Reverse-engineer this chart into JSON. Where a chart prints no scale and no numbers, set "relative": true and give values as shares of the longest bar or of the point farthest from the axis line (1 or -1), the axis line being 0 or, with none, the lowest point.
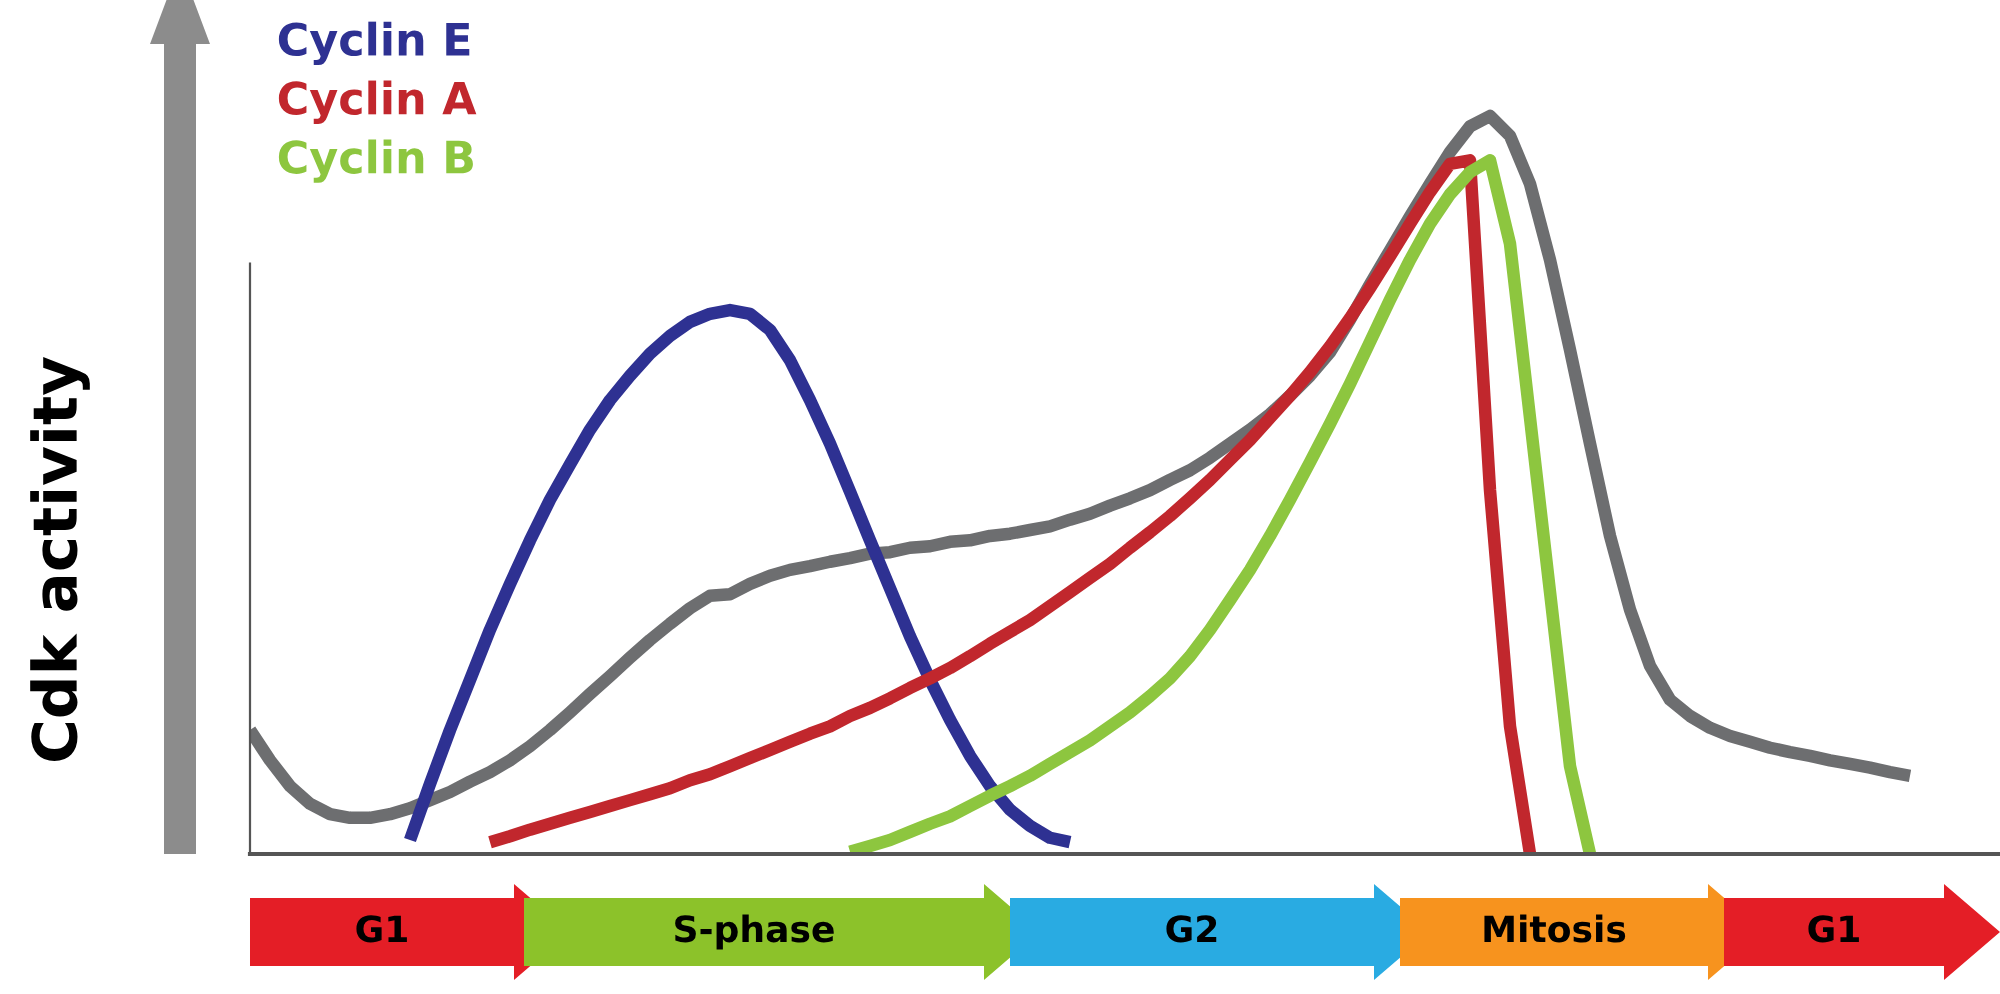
{
  "chart_data": {
    "type": "line",
    "relative": true,
    "ylabel": "Cdk activity",
    "legend": "top left",
    "marker": "none",
    "line_style": "solid",
    "grid": false,
    "categories": [
      null,
      null,
      null,
      null,
      null,
      null,
      null,
      null,
      null,
      null,
      null,
      null,
      null,
      null,
      null,
      null,
      null,
      null,
      null,
      null,
      null,
      null,
      null,
      null,
      null,
      null,
      null,
      null,
      null,
      null,
      null,
      null,
      null,
      null,
      null,
      null,
      null,
      null,
      null,
      null,
      null,
      null,
      null,
      null,
      null,
      null,
      null,
      null,
      null,
      null,
      null,
      null,
      null,
      null,
      null,
      null,
      null,
      null,
      null,
      null,
      null,
      null,
      null,
      null,
      null,
      null,
      null,
      null,
      null,
      null,
      null,
      null,
      null,
      null,
      null,
      null,
      null,
      null,
      null,
      null,
      null,
      null,
      null,
      null
    ],
    "series": [
      {
        "color": "#6d6e70",
        "values": [
          0.168,
          0.127,
          0.092,
          0.068,
          0.054,
          0.049,
          0.049,
          0.054,
          0.062,
          0.073,
          0.084,
          0.098,
          0.111,
          0.127,
          0.146,
          0.168,
          0.192,
          0.217,
          0.241,
          0.266,
          0.29,
          0.312,
          0.333,
          0.35,
          0.352,
          0.366,
          0.377,
          0.385,
          0.39,
          0.396,
          0.401,
          0.407,
          0.409,
          0.415,
          0.417,
          0.423,
          0.425,
          0.431,
          0.434,
          0.439,
          0.444,
          0.453,
          0.461,
          0.472,
          0.482,
          0.493,
          0.507,
          0.52,
          0.537,
          0.556,
          0.575,
          0.596,
          0.621,
          0.648,
          0.68,
          0.724,
          0.772,
          0.818,
          0.864,
          0.908,
          0.951,
          0.986,
          1,
          0.973,
          0.908,
          0.805,
          0.683,
          0.556,
          0.431,
          0.331,
          0.255,
          0.209,
          0.187,
          0.171,
          0.16,
          0.152,
          0.144,
          0.138,
          0.133,
          0.127,
          0.122,
          0.117,
          0.111,
          0.106
        ]
      },
      {
        "name": "Cyclin E",
        "color": "#2e3192",
        "values": [
          null,
          null,
          null,
          null,
          null,
          null,
          null,
          null,
          0.019,
          0.095,
          0.168,
          0.236,
          0.304,
          0.366,
          0.425,
          0.48,
          0.528,
          0.575,
          0.615,
          0.648,
          0.678,
          0.702,
          0.721,
          0.732,
          0.737,
          0.732,
          0.71,
          0.669,
          0.615,
          0.556,
          0.491,
          0.425,
          0.36,
          0.295,
          0.236,
          0.182,
          0.133,
          0.092,
          0.06,
          0.038,
          0.022,
          0.016,
          null,
          null,
          null,
          null,
          null,
          null,
          null,
          null,
          null,
          null,
          null,
          null,
          null,
          null,
          null,
          null,
          null,
          null,
          null,
          null,
          null,
          null,
          null,
          null,
          null,
          null,
          null,
          null,
          null,
          null,
          null,
          null,
          null,
          null,
          null,
          null,
          null,
          null,
          null,
          null,
          null,
          null
        ]
      },
      {
        "name": "Cyclin A",
        "color": "#c1272d",
        "values": [
          null,
          null,
          null,
          null,
          null,
          null,
          null,
          null,
          null,
          null,
          null,
          null,
          0.016,
          0.024,
          0.033,
          0.041,
          0.049,
          0.057,
          0.065,
          0.073,
          0.081,
          0.089,
          0.1,
          0.108,
          0.119,
          0.13,
          0.141,
          0.152,
          0.163,
          0.173,
          0.187,
          0.198,
          0.211,
          0.225,
          0.238,
          0.252,
          0.268,
          0.285,
          0.301,
          0.317,
          0.336,
          0.355,
          0.374,
          0.393,
          0.415,
          0.436,
          0.458,
          0.482,
          0.507,
          0.534,
          0.561,
          0.591,
          0.621,
          0.653,
          0.688,
          0.726,
          0.767,
          0.81,
          0.854,
          0.897,
          0.935,
          0.94,
          0.493,
          0.173,
          0,
          null,
          null,
          null,
          null,
          null,
          null,
          null,
          null,
          null,
          null,
          null,
          null,
          null,
          null,
          null,
          null,
          null,
          null,
          null
        ]
      },
      {
        "name": "Cyclin B",
        "color": "#8dc63f",
        "values": [
          null,
          null,
          null,
          null,
          null,
          null,
          null,
          null,
          null,
          null,
          null,
          null,
          null,
          null,
          null,
          null,
          null,
          null,
          null,
          null,
          null,
          null,
          null,
          null,
          null,
          null,
          null,
          null,
          null,
          null,
          0.003,
          0.011,
          0.019,
          0.03,
          0.041,
          0.051,
          0.065,
          0.079,
          0.092,
          0.106,
          0.122,
          0.138,
          0.154,
          0.173,
          0.192,
          0.214,
          0.238,
          0.268,
          0.304,
          0.344,
          0.385,
          0.431,
          0.48,
          0.531,
          0.583,
          0.637,
          0.694,
          0.751,
          0.805,
          0.854,
          0.894,
          0.924,
          0.94,
          0.827,
          0.591,
          0.355,
          0.119,
          0,
          null,
          null,
          null,
          null,
          null,
          null,
          null,
          null,
          null,
          null,
          null,
          null,
          null,
          null,
          null,
          null
        ]
      }
    ],
    "annotations": [
      "G1",
      "S-phase",
      "G2",
      "Mitosis",
      "G1"
    ]
  }
}
